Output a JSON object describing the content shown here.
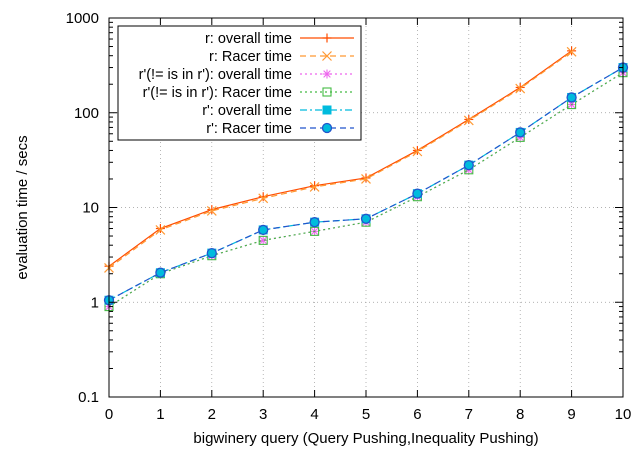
{
  "chart_data": {
    "type": "line",
    "xlabel": "bigwinery query (Query Pushing,Inequality Pushing)",
    "ylabel": "evaluation time / secs",
    "xlim": [
      0,
      10
    ],
    "ylim": [
      0.1,
      1000
    ],
    "yscale": "log",
    "grid": true,
    "legend_position": "top-left",
    "x_ticks": [
      "0",
      "1",
      "2",
      "3",
      "4",
      "5",
      "6",
      "7",
      "8",
      "9",
      "10"
    ],
    "y_ticks": [
      "0.1",
      "1",
      "10",
      "100",
      "1000"
    ],
    "series": [
      {
        "name": "r: overall time",
        "color": "#ff4d00",
        "marker": "plus",
        "dash": "solid",
        "x": [
          0,
          1,
          2,
          3,
          4,
          5,
          6,
          7,
          8,
          9
        ],
        "y": [
          2.4,
          6,
          9.5,
          13,
          17,
          20.5,
          40,
          85,
          185,
          450
        ]
      },
      {
        "name": "r: Racer time",
        "color": "#ff9933",
        "marker": "cross",
        "dash": "dashed",
        "x": [
          0,
          1,
          2,
          3,
          4,
          5,
          6,
          7,
          8,
          9
        ],
        "y": [
          2.3,
          5.8,
          9.2,
          12.5,
          16.5,
          20,
          39,
          83,
          180,
          440
        ]
      },
      {
        "name": "r'(!= is in r'): overall time",
        "color": "#ee66ee",
        "marker": "star",
        "dash": "dotted",
        "x": [
          0,
          1,
          2,
          3,
          4,
          5,
          6,
          7,
          8,
          9,
          10
        ],
        "y": [
          0.9,
          2,
          3.1,
          4.5,
          5.6,
          7,
          13,
          25,
          55,
          122,
          265
        ]
      },
      {
        "name": "r'(!= is in r'): Racer time",
        "color": "#44bb44",
        "marker": "square-open",
        "dash": "dotted",
        "x": [
          0,
          1,
          2,
          3,
          4,
          5,
          6,
          7,
          8,
          9,
          10
        ],
        "y": [
          0.9,
          2,
          3.1,
          4.5,
          5.6,
          7,
          13,
          25,
          55,
          122,
          265
        ]
      },
      {
        "name": "r': overall time",
        "color": "#00bbdd",
        "marker": "square-filled",
        "dash": "dashdot",
        "x": [
          0,
          1,
          2,
          3,
          4,
          5,
          6,
          7,
          8,
          9,
          10
        ],
        "y": [
          1.05,
          2.05,
          3.3,
          5.8,
          7,
          7.6,
          14,
          28,
          62,
          145,
          300
        ]
      },
      {
        "name": "r': Racer time",
        "color": "#2255cc",
        "marker": "circle-open",
        "dash": "dashed",
        "x": [
          0,
          1,
          2,
          3,
          4,
          5,
          6,
          7,
          8,
          9,
          10
        ],
        "y": [
          1.05,
          2.05,
          3.3,
          5.8,
          7,
          7.6,
          14,
          28,
          62,
          145,
          300
        ]
      }
    ]
  }
}
